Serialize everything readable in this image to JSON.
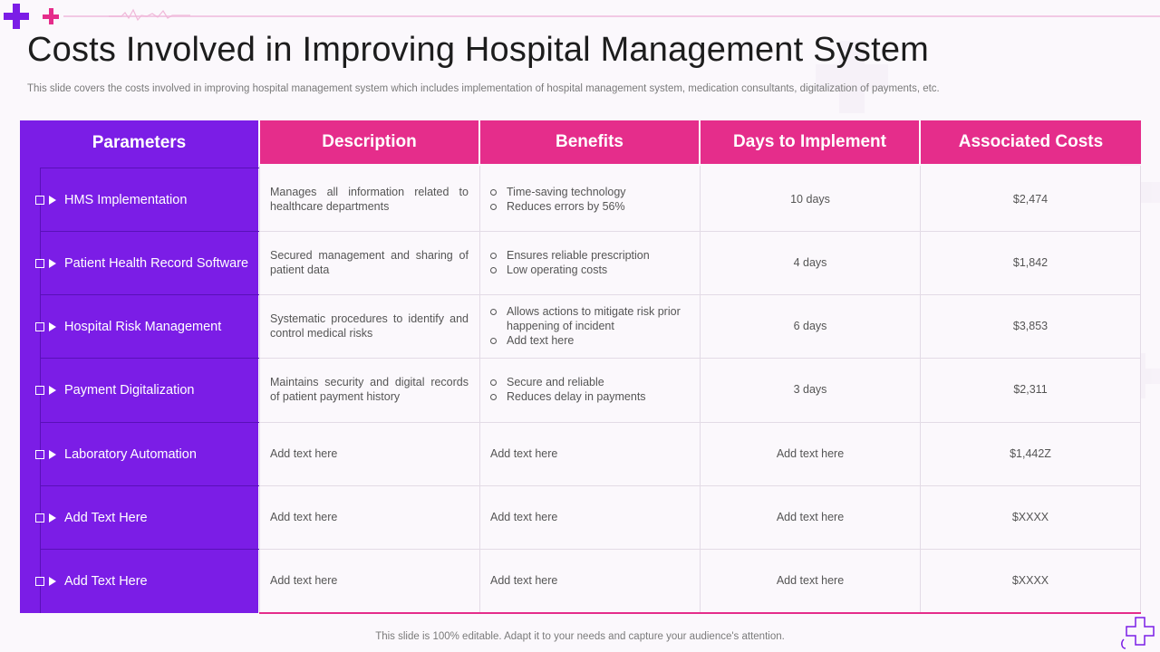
{
  "title": "Costs Involved in Improving Hospital Management System",
  "subtitle": "This slide covers the costs involved in improving hospital management system which includes implementation of hospital management system, medication consultants, digitalization of payments, etc.",
  "footer": "This slide is 100% editable. Adapt it to your needs and capture your audience's attention.",
  "colors": {
    "purple": "#7b1de6",
    "pink": "#e52d8b"
  },
  "icons": [
    "plus-icon",
    "heartbeat-line-icon",
    "checkbox-icon",
    "play-arrow-icon",
    "medical-cross-icon"
  ],
  "table": {
    "headers": [
      "Parameters",
      "Description",
      "Benefits",
      "Days to Implement",
      "Associated Costs"
    ],
    "rows": [
      {
        "parameter": "HMS Implementation",
        "description": "Manages all information related to healthcare departments",
        "benefits": [
          "Time-saving technology",
          "Reduces errors by 56%"
        ],
        "days": "10 days",
        "cost": "$2,474"
      },
      {
        "parameter": "Patient Health Record Software",
        "description": "Secured management and sharing of patient data",
        "benefits": [
          "Ensures reliable prescription",
          "Low operating costs"
        ],
        "days": "4 days",
        "cost": "$1,842"
      },
      {
        "parameter": "Hospital Risk Management",
        "description": "Systematic procedures to identify and control medical risks",
        "benefits": [
          "Allows actions to mitigate risk prior happening of incident",
          "Add text here"
        ],
        "days": "6 days",
        "cost": "$3,853"
      },
      {
        "parameter": "Payment Digitalization",
        "description": "Maintains security and digital records of patient payment history",
        "benefits": [
          "Secure and reliable",
          "Reduces delay in payments"
        ],
        "days": "3 days",
        "cost": "$2,311"
      },
      {
        "parameter": "Laboratory Automation",
        "description": "Add text here",
        "benefits_text": "Add text here",
        "days": "Add text here",
        "cost": "$1,442Z"
      },
      {
        "parameter": "Add Text Here",
        "description": "Add text here",
        "benefits_text": "Add text here",
        "days": "Add text here",
        "cost": "$XXXX"
      },
      {
        "parameter": "Add Text Here",
        "description": "Add text here",
        "benefits_text": "Add text here",
        "days": "Add text here",
        "cost": "$XXXX"
      }
    ]
  }
}
